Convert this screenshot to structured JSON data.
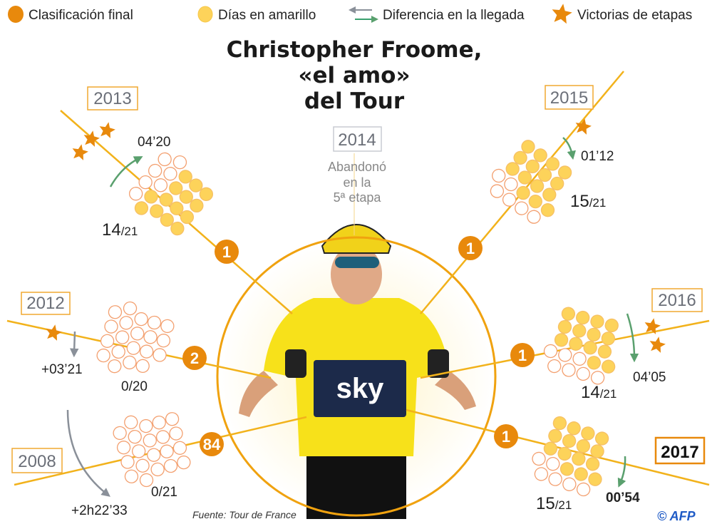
{
  "legend": [
    {
      "label": "Clasificación final",
      "icon": "orange-circle-icon"
    },
    {
      "label": "Días en amarillo",
      "icon": "yellow-circle-icon"
    },
    {
      "label": "Diferencia en la llegada",
      "icon": "arrows-icon"
    },
    {
      "label": "Victorias de etapas",
      "icon": "star-icon"
    }
  ],
  "title": [
    "Christopher Froome,",
    "«el amo»",
    "del Tour"
  ],
  "colors": {
    "orange": "#e8890c",
    "yellow": "#fdd35a",
    "line": "#f2b21b",
    "green": "#5aa06e",
    "grey": "#8a9099"
  },
  "years": {
    "y2013": {
      "year": "2013",
      "rank": "1",
      "yellow_days": 14,
      "total_days": 21,
      "days_num": "14",
      "days_den": "/21",
      "diff": "04’20",
      "diff_dir": "up",
      "stage_wins": 3
    },
    "y2014": {
      "year": "2014",
      "note": [
        "Abandonó",
        "en la",
        "5ª etapa"
      ]
    },
    "y2015": {
      "year": "2015",
      "rank": "1",
      "yellow_days": 15,
      "total_days": 21,
      "days_num": "15",
      "days_den": "/21",
      "diff": "01’12",
      "diff_dir": "down",
      "stage_wins": 1
    },
    "y2012": {
      "year": "2012",
      "rank": "2",
      "yellow_days": 0,
      "total_days": 20,
      "days": "0/20",
      "diff": "+03’21",
      "diff_dir": "behind",
      "stage_wins": 1
    },
    "y2016": {
      "year": "2016",
      "rank": "1",
      "yellow_days": 14,
      "total_days": 21,
      "days_num": "14",
      "days_den": "/21",
      "diff": "04’05",
      "diff_dir": "down",
      "stage_wins": 2
    },
    "y2008": {
      "year": "2008",
      "rank": "84",
      "yellow_days": 0,
      "total_days": 21,
      "days": "0/21",
      "diff": "+2h22’33",
      "diff_dir": "behind",
      "stage_wins": 0
    },
    "y2017": {
      "year": "2017",
      "rank": "1",
      "yellow_days": 15,
      "total_days": 21,
      "days_num": "15",
      "days_den": "/21",
      "diff": "00’54",
      "diff_dir": "down",
      "stage_wins": 0
    }
  },
  "source": "Fuente: Tour de France",
  "credit": "© AFP"
}
